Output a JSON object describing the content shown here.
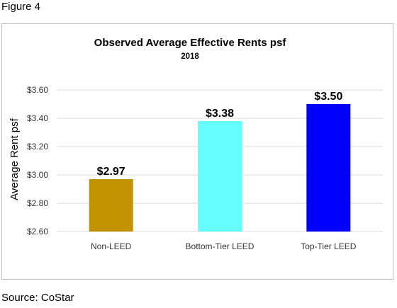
{
  "figure_label": "Figure 4",
  "source": "Source: CoStar",
  "chart_data": {
    "type": "bar",
    "title": "Observed Average Effective Rents psf",
    "subtitle": "2018",
    "xlabel": "",
    "ylabel": "Average Rent psf",
    "categories": [
      "Non-LEED",
      "Bottom-Tier LEED",
      "Top-Tier LEED"
    ],
    "values": [
      2.97,
      3.38,
      3.5
    ],
    "data_labels": [
      "$2.97",
      "$3.38",
      "$3.50"
    ],
    "colors": [
      "#c39201",
      "#66ffff",
      "#0000ff"
    ],
    "ylim": [
      2.6,
      3.6
    ],
    "yticks": [
      2.6,
      2.8,
      3.0,
      3.2,
      3.4,
      3.6
    ],
    "ytick_labels": [
      "$2.60",
      "$2.80",
      "$3.00",
      "$3.20",
      "$3.40",
      "$3.60"
    ],
    "grid": true,
    "legend": "none"
  }
}
